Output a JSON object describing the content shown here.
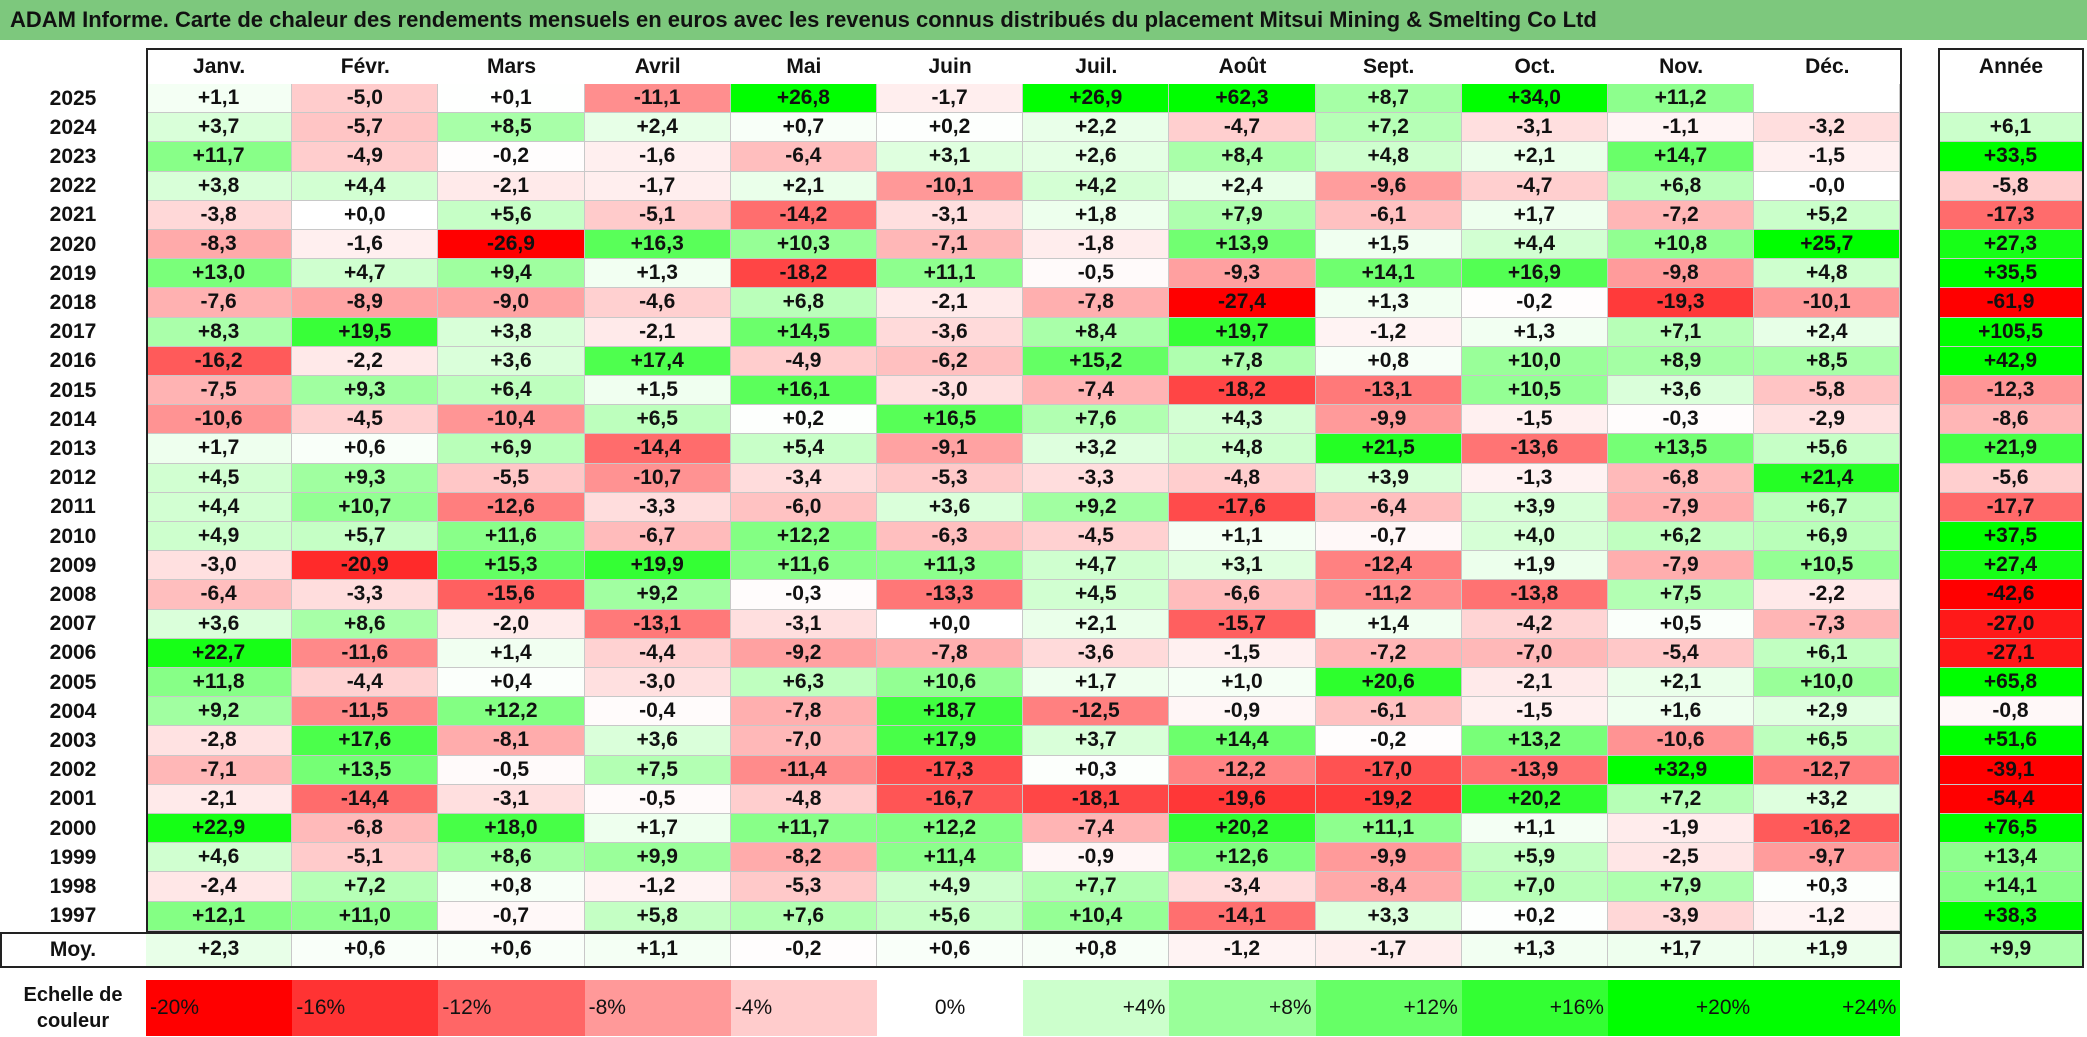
{
  "title": "ADAM Informe. Carte de chaleur des rendements mensuels en euros avec les revenus connus distribués du placement Mitsui Mining & Smelting Co Ltd",
  "chart_data": {
    "type": "heatmap",
    "title": "ADAM Informe. Carte de chaleur des rendements mensuels en euros avec les revenus connus distribués du placement Mitsui Mining & Smelting Co Ltd",
    "months": [
      "Janv.",
      "Févr.",
      "Mars",
      "Avril",
      "Mai",
      "Juin",
      "Juil.",
      "Août",
      "Sept.",
      "Oct.",
      "Nov.",
      "Déc."
    ],
    "annual_label": "Année",
    "rows": [
      {
        "year": "2025",
        "values": [
          "+1,1",
          "-5,0",
          "+0,1",
          "-11,1",
          "+26,8",
          "-1,7",
          "+26,9",
          "+62,3",
          "+8,7",
          "+34,0",
          "+11,2",
          ""
        ],
        "annual": ""
      },
      {
        "year": "2024",
        "values": [
          "+3,7",
          "-5,7",
          "+8,5",
          "+2,4",
          "+0,7",
          "+0,2",
          "+2,2",
          "-4,7",
          "+7,2",
          "-3,1",
          "-1,1",
          "-3,2"
        ],
        "annual": "+6,1"
      },
      {
        "year": "2023",
        "values": [
          "+11,7",
          "-4,9",
          "-0,2",
          "-1,6",
          "-6,4",
          "+3,1",
          "+2,6",
          "+8,4",
          "+4,8",
          "+2,1",
          "+14,7",
          "-1,5"
        ],
        "annual": "+33,5"
      },
      {
        "year": "2022",
        "values": [
          "+3,8",
          "+4,4",
          "-2,1",
          "-1,7",
          "+2,1",
          "-10,1",
          "+4,2",
          "+2,4",
          "-9,6",
          "-4,7",
          "+6,8",
          "-0,0"
        ],
        "annual": "-5,8"
      },
      {
        "year": "2021",
        "values": [
          "-3,8",
          "+0,0",
          "+5,6",
          "-5,1",
          "-14,2",
          "-3,1",
          "+1,8",
          "+7,9",
          "-6,1",
          "+1,7",
          "-7,2",
          "+5,2"
        ],
        "annual": "-17,3"
      },
      {
        "year": "2020",
        "values": [
          "-8,3",
          "-1,6",
          "-26,9",
          "+16,3",
          "+10,3",
          "-7,1",
          "-1,8",
          "+13,9",
          "+1,5",
          "+4,4",
          "+10,8",
          "+25,7"
        ],
        "annual": "+27,3"
      },
      {
        "year": "2019",
        "values": [
          "+13,0",
          "+4,7",
          "+9,4",
          "+1,3",
          "-18,2",
          "+11,1",
          "-0,5",
          "-9,3",
          "+14,1",
          "+16,9",
          "-9,8",
          "+4,8"
        ],
        "annual": "+35,5"
      },
      {
        "year": "2018",
        "values": [
          "-7,6",
          "-8,9",
          "-9,0",
          "-4,6",
          "+6,8",
          "-2,1",
          "-7,8",
          "-27,4",
          "+1,3",
          "-0,2",
          "-19,3",
          "-10,1"
        ],
        "annual": "-61,9"
      },
      {
        "year": "2017",
        "values": [
          "+8,3",
          "+19,5",
          "+3,8",
          "-2,1",
          "+14,5",
          "-3,6",
          "+8,4",
          "+19,7",
          "-1,2",
          "+1,3",
          "+7,1",
          "+2,4"
        ],
        "annual": "+105,5"
      },
      {
        "year": "2016",
        "values": [
          "-16,2",
          "-2,2",
          "+3,6",
          "+17,4",
          "-4,9",
          "-6,2",
          "+15,2",
          "+7,8",
          "+0,8",
          "+10,0",
          "+8,9",
          "+8,5"
        ],
        "annual": "+42,9"
      },
      {
        "year": "2015",
        "values": [
          "-7,5",
          "+9,3",
          "+6,4",
          "+1,5",
          "+16,1",
          "-3,0",
          "-7,4",
          "-18,2",
          "-13,1",
          "+10,5",
          "+3,6",
          "-5,8"
        ],
        "annual": "-12,3"
      },
      {
        "year": "2014",
        "values": [
          "-10,6",
          "-4,5",
          "-10,4",
          "+6,5",
          "+0,2",
          "+16,5",
          "+7,6",
          "+4,3",
          "-9,9",
          "-1,5",
          "-0,3",
          "-2,9"
        ],
        "annual": "-8,6"
      },
      {
        "year": "2013",
        "values": [
          "+1,7",
          "+0,6",
          "+6,9",
          "-14,4",
          "+5,4",
          "-9,1",
          "+3,2",
          "+4,8",
          "+21,5",
          "-13,6",
          "+13,5",
          "+5,6"
        ],
        "annual": "+21,9"
      },
      {
        "year": "2012",
        "values": [
          "+4,5",
          "+9,3",
          "-5,5",
          "-10,7",
          "-3,4",
          "-5,3",
          "-3,3",
          "-4,8",
          "+3,9",
          "-1,3",
          "-6,8",
          "+21,4"
        ],
        "annual": "-5,6"
      },
      {
        "year": "2011",
        "values": [
          "+4,4",
          "+10,7",
          "-12,6",
          "-3,3",
          "-6,0",
          "+3,6",
          "+9,2",
          "-17,6",
          "-6,4",
          "+3,9",
          "-7,9",
          "+6,7"
        ],
        "annual": "-17,7"
      },
      {
        "year": "2010",
        "values": [
          "+4,9",
          "+5,7",
          "+11,6",
          "-6,7",
          "+12,2",
          "-6,3",
          "-4,5",
          "+1,1",
          "-0,7",
          "+4,0",
          "+6,2",
          "+6,9"
        ],
        "annual": "+37,5"
      },
      {
        "year": "2009",
        "values": [
          "-3,0",
          "-20,9",
          "+15,3",
          "+19,9",
          "+11,6",
          "+11,3",
          "+4,7",
          "+3,1",
          "-12,4",
          "+1,9",
          "-7,9",
          "+10,5"
        ],
        "annual": "+27,4"
      },
      {
        "year": "2008",
        "values": [
          "-6,4",
          "-3,3",
          "-15,6",
          "+9,2",
          "-0,3",
          "-13,3",
          "+4,5",
          "-6,6",
          "-11,2",
          "-13,8",
          "+7,5",
          "-2,2"
        ],
        "annual": "-42,6"
      },
      {
        "year": "2007",
        "values": [
          "+3,6",
          "+8,6",
          "-2,0",
          "-13,1",
          "-3,1",
          "+0,0",
          "+2,1",
          "-15,7",
          "+1,4",
          "-4,2",
          "+0,5",
          "-7,3"
        ],
        "annual": "-27,0"
      },
      {
        "year": "2006",
        "values": [
          "+22,7",
          "-11,6",
          "+1,4",
          "-4,4",
          "-9,2",
          "-7,8",
          "-3,6",
          "-1,5",
          "-7,2",
          "-7,0",
          "-5,4",
          "+6,1"
        ],
        "annual": "-27,1"
      },
      {
        "year": "2005",
        "values": [
          "+11,8",
          "-4,4",
          "+0,4",
          "-3,0",
          "+6,3",
          "+10,6",
          "+1,7",
          "+1,0",
          "+20,6",
          "-2,1",
          "+2,1",
          "+10,0"
        ],
        "annual": "+65,8"
      },
      {
        "year": "2004",
        "values": [
          "+9,2",
          "-11,5",
          "+12,2",
          "-0,4",
          "-7,8",
          "+18,7",
          "-12,5",
          "-0,9",
          "-6,1",
          "-1,5",
          "+1,6",
          "+2,9"
        ],
        "annual": "-0,8"
      },
      {
        "year": "2003",
        "values": [
          "-2,8",
          "+17,6",
          "-8,1",
          "+3,6",
          "-7,0",
          "+17,9",
          "+3,7",
          "+14,4",
          "-0,2",
          "+13,2",
          "-10,6",
          "+6,5"
        ],
        "annual": "+51,6"
      },
      {
        "year": "2002",
        "values": [
          "-7,1",
          "+13,5",
          "-0,5",
          "+7,5",
          "-11,4",
          "-17,3",
          "+0,3",
          "-12,2",
          "-17,0",
          "-13,9",
          "+32,9",
          "-12,7"
        ],
        "annual": "-39,1"
      },
      {
        "year": "2001",
        "values": [
          "-2,1",
          "-14,4",
          "-3,1",
          "-0,5",
          "-4,8",
          "-16,7",
          "-18,1",
          "-19,6",
          "-19,2",
          "+20,2",
          "+7,2",
          "+3,2"
        ],
        "annual": "-54,4"
      },
      {
        "year": "2000",
        "values": [
          "+22,9",
          "-6,8",
          "+18,0",
          "+1,7",
          "+11,7",
          "+12,2",
          "-7,4",
          "+20,2",
          "+11,1",
          "+1,1",
          "-1,9",
          "-16,2"
        ],
        "annual": "+76,5"
      },
      {
        "year": "1999",
        "values": [
          "+4,6",
          "-5,1",
          "+8,6",
          "+9,9",
          "-8,2",
          "+11,4",
          "-0,9",
          "+12,6",
          "-9,9",
          "+5,9",
          "-2,5",
          "-9,7"
        ],
        "annual": "+13,4"
      },
      {
        "year": "1998",
        "values": [
          "-2,4",
          "+7,2",
          "+0,8",
          "-1,2",
          "-5,3",
          "+4,9",
          "+7,7",
          "-3,4",
          "-8,4",
          "+7,0",
          "+7,9",
          "+0,3"
        ],
        "annual": "+14,1"
      },
      {
        "year": "1997",
        "values": [
          "+12,1",
          "+11,0",
          "-0,7",
          "+5,8",
          "+7,6",
          "+5,6",
          "+10,4",
          "-14,1",
          "+3,3",
          "+0,2",
          "-3,9",
          "-1,2"
        ],
        "annual": "+38,3"
      }
    ],
    "average": {
      "label": "Moy.",
      "values": [
        "+2,3",
        "+0,6",
        "+0,6",
        "+1,1",
        "-0,2",
        "+0,6",
        "+0,8",
        "-1,2",
        "-1,7",
        "+1,3",
        "+1,7",
        "+1,9"
      ],
      "annual": "+9,9"
    },
    "legend": {
      "label_line1": "Echelle de",
      "label_line2": "couleur",
      "steps": [
        "-20%",
        "-16%",
        "-12%",
        "-8%",
        "-4%",
        "0%",
        "+4%",
        "+8%",
        "+12%",
        "+16%",
        "+20%",
        "+24%"
      ],
      "step_values": [
        -20,
        -16,
        -12,
        -8,
        -4,
        0,
        4,
        8,
        12,
        16,
        20,
        24
      ]
    },
    "colors": {
      "negative_max": "#ff0000",
      "neutral": "#ffffff",
      "positive_max": "#00ff00",
      "title_bar": "#7dc87d"
    }
  }
}
